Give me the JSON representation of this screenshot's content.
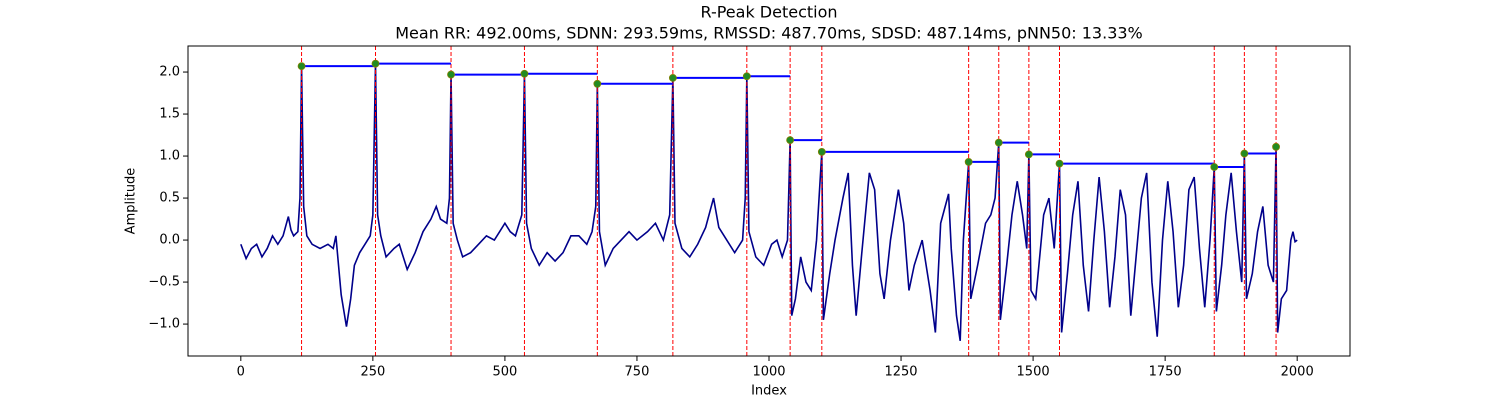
{
  "chart_data": {
    "type": "line",
    "title": "R-Peak Detection",
    "subtitle": "Mean RR: 492.00ms, SDNN: 293.59ms, RMSSD: 487.70ms, SDSD: 487.14ms, pNN50: 13.33%",
    "xlabel": "Index",
    "ylabel": "Amplitude",
    "xlim": [
      -100,
      2100
    ],
    "ylim": [
      -1.38,
      2.31
    ],
    "xticks": [
      0,
      250,
      500,
      750,
      1000,
      1250,
      1500,
      1750,
      2000
    ],
    "yticks": [
      {
        "value": -1.0,
        "label": "−1.0"
      },
      {
        "value": -0.5,
        "label": "−0.5"
      },
      {
        "value": 0.0,
        "label": "0.0"
      },
      0.5,
      {
        "value": 1.0,
        "label": "1.0"
      },
      1.5,
      {
        "value": 2.0,
        "label": "2.0"
      }
    ],
    "series": [
      {
        "color": "#00008b",
        "x": [
          0,
          10,
          20,
          30,
          40,
          50,
          60,
          70,
          80,
          90,
          95,
          100,
          108,
          112,
          115,
          119,
          125,
          135,
          150,
          165,
          175,
          180,
          185,
          190,
          200,
          208,
          215,
          225,
          235,
          245,
          250,
          255,
          259,
          265,
          275,
          290,
          300,
          315,
          330,
          345,
          360,
          370,
          378,
          390,
          395,
          398,
          402,
          410,
          420,
          435,
          450,
          465,
          480,
          490,
          500,
          510,
          520,
          532,
          537,
          541,
          550,
          565,
          580,
          595,
          610,
          625,
          640,
          655,
          665,
          672,
          675,
          679,
          690,
          705,
          720,
          735,
          750,
          770,
          785,
          800,
          812,
          818,
          822,
          835,
          850,
          865,
          880,
          895,
          905,
          920,
          935,
          950,
          955,
          958,
          962,
          975,
          990,
          1005,
          1015,
          1025,
          1035,
          1040,
          1043,
          1050,
          1060,
          1070,
          1080,
          1090,
          1100,
          1103,
          1115,
          1125,
          1140,
          1150,
          1158,
          1165,
          1175,
          1190,
          1200,
          1210,
          1218,
          1230,
          1245,
          1255,
          1265,
          1275,
          1290,
          1305,
          1315,
          1325,
          1340,
          1345,
          1355,
          1362,
          1368,
          1378,
          1382,
          1395,
          1410,
          1420,
          1428,
          1435,
          1438,
          1450,
          1460,
          1470,
          1480,
          1488,
          1492,
          1496,
          1505,
          1520,
          1530,
          1540,
          1550,
          1554,
          1565,
          1575,
          1585,
          1595,
          1605,
          1615,
          1625,
          1635,
          1645,
          1655,
          1665,
          1675,
          1685,
          1695,
          1705,
          1715,
          1725,
          1735,
          1745,
          1755,
          1765,
          1775,
          1785,
          1795,
          1805,
          1815,
          1825,
          1835,
          1843,
          1847,
          1857,
          1865,
          1875,
          1885,
          1895,
          1900,
          1904,
          1915,
          1925,
          1935,
          1945,
          1955,
          1960,
          1963,
          1970,
          1980,
          1988,
          1992,
          1996,
          2000
        ],
        "values": [
          -0.05,
          -0.22,
          -0.1,
          -0.05,
          -0.2,
          -0.1,
          0.05,
          -0.05,
          0.05,
          0.28,
          0.12,
          0.05,
          0.1,
          0.5,
          2.07,
          0.4,
          0.05,
          -0.05,
          -0.1,
          -0.05,
          -0.1,
          0.05,
          -0.3,
          -0.65,
          -1.03,
          -0.7,
          -0.3,
          -0.15,
          -0.05,
          0.05,
          0.3,
          2.1,
          0.3,
          0.05,
          -0.2,
          -0.1,
          -0.05,
          -0.35,
          -0.15,
          0.1,
          0.25,
          0.4,
          0.25,
          0.2,
          0.5,
          1.97,
          0.2,
          0.0,
          -0.2,
          -0.15,
          -0.05,
          0.05,
          0.0,
          0.1,
          0.2,
          0.1,
          0.05,
          0.3,
          1.98,
          0.2,
          -0.1,
          -0.3,
          -0.15,
          -0.25,
          -0.15,
          0.05,
          0.05,
          -0.05,
          0.1,
          0.4,
          1.86,
          0.1,
          -0.3,
          -0.1,
          0.0,
          0.1,
          0.0,
          0.1,
          0.2,
          0.0,
          0.3,
          1.93,
          0.2,
          -0.1,
          -0.2,
          -0.05,
          0.15,
          0.5,
          0.15,
          0.0,
          -0.15,
          0.0,
          0.5,
          1.95,
          0.1,
          -0.2,
          -0.3,
          -0.05,
          0.0,
          -0.2,
          0.0,
          1.19,
          -0.9,
          -0.7,
          -0.2,
          -0.5,
          -0.6,
          0.0,
          1.05,
          -0.95,
          -0.4,
          0.0,
          0.5,
          0.8,
          -0.3,
          -0.9,
          -0.2,
          0.8,
          0.6,
          -0.4,
          -0.7,
          0.0,
          0.6,
          0.2,
          -0.6,
          -0.3,
          0.0,
          -0.6,
          -1.1,
          0.2,
          0.55,
          -0.1,
          -0.9,
          -1.2,
          0.0,
          0.93,
          -0.7,
          -0.3,
          0.2,
          0.3,
          0.5,
          1.16,
          -0.95,
          -0.3,
          0.3,
          0.7,
          0.3,
          -0.1,
          1.02,
          -0.6,
          -0.7,
          0.3,
          0.5,
          -0.1,
          0.91,
          -1.1,
          -0.4,
          0.3,
          0.7,
          -0.3,
          -0.85,
          0.0,
          0.75,
          0.1,
          -0.8,
          -0.2,
          0.6,
          0.3,
          -0.9,
          -0.2,
          0.5,
          0.8,
          -0.5,
          -1.15,
          0.0,
          0.7,
          0.1,
          -0.8,
          -0.3,
          0.6,
          0.75,
          -0.1,
          -0.8,
          0.0,
          0.87,
          -0.85,
          -0.3,
          0.3,
          0.8,
          0.1,
          -0.5,
          1.03,
          -0.7,
          -0.4,
          0.1,
          0.4,
          -0.3,
          -0.5,
          1.11,
          -1.1,
          -0.7,
          -0.6,
          0.0,
          0.1,
          -0.02,
          0.0
        ]
      }
    ],
    "peaks": {
      "color": "#228b22",
      "x": [
        115,
        255,
        398,
        537,
        675,
        818,
        958,
        1040,
        1100,
        1378,
        1435,
        1492,
        1550,
        1843,
        1900,
        1960
      ],
      "values": [
        2.07,
        2.1,
        1.97,
        1.98,
        1.86,
        1.93,
        1.95,
        1.19,
        1.05,
        0.93,
        1.16,
        1.02,
        0.91,
        0.87,
        1.03,
        1.11
      ]
    },
    "vline_color": "#ff0000",
    "hline_color": "#0000ff"
  }
}
